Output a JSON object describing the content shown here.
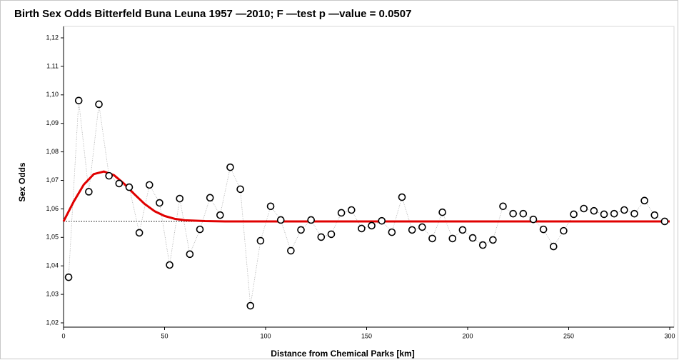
{
  "chart_data": {
    "type": "scatter",
    "title": "Birth Sex Odds Bitterfeld Buna Leuna 1957 —2010; F —test p —value =  0.0507",
    "x_label": "Distance from Chemical Parks [km]",
    "y_label": "Sex Odds",
    "xlim": [
      0,
      300
    ],
    "ylim": [
      1.02,
      1.12
    ],
    "xticks": [
      0,
      50,
      100,
      150,
      200,
      250,
      300
    ],
    "yticks": [
      {
        "value": 1.02,
        "label": "1,02"
      },
      {
        "value": 1.03,
        "label": "1,03"
      },
      {
        "value": 1.04,
        "label": "1,04"
      },
      {
        "value": 1.05,
        "label": "1,05"
      },
      {
        "value": 1.06,
        "label": "1,06"
      },
      {
        "value": 1.07,
        "label": "1,07"
      },
      {
        "value": 1.08,
        "label": "1,08"
      },
      {
        "value": 1.09,
        "label": "1,09"
      },
      {
        "value": 1.1,
        "label": "1,10"
      },
      {
        "value": 1.11,
        "label": "1,11"
      },
      {
        "value": 1.12,
        "label": "1,12"
      }
    ],
    "points": {
      "color": "#000000",
      "connector_color": "#aaaaaa",
      "x": [
        2.5,
        7.5,
        12.5,
        17.5,
        22.5,
        27.5,
        32.5,
        37.5,
        42.5,
        47.5,
        52.5,
        57.5,
        62.5,
        67.5,
        72.5,
        77.5,
        82.5,
        87.5,
        92.5,
        97.5,
        102.5,
        107.5,
        112.5,
        117.5,
        122.5,
        127.5,
        132.5,
        137.5,
        142.5,
        147.5,
        152.5,
        157.5,
        162.5,
        167.5,
        172.5,
        177.5,
        182.5,
        187.5,
        192.5,
        197.5,
        202.5,
        207.5,
        212.5,
        217.5,
        222.5,
        227.5,
        232.5,
        237.5,
        242.5,
        247.5,
        252.5,
        257.5,
        262.5,
        267.5,
        272.5,
        277.5,
        282.5,
        287.5,
        292.5,
        297.5
      ],
      "values": [
        1.036,
        1.098,
        1.066,
        1.0967,
        1.0716,
        1.0689,
        1.0676,
        1.0516,
        1.0684,
        1.0621,
        1.0403,
        1.0636,
        1.0441,
        1.0528,
        1.0639,
        1.0578,
        1.0746,
        1.0669,
        1.026,
        1.0488,
        1.0609,
        1.0561,
        1.0453,
        1.0526,
        1.0561,
        1.0501,
        1.0511,
        1.0586,
        1.0596,
        1.0531,
        1.0541,
        1.0558,
        1.0518,
        1.0641,
        1.0526,
        1.0536,
        1.0496,
        1.0588,
        1.0496,
        1.0526,
        1.0498,
        1.0473,
        1.0491,
        1.0609,
        1.0583,
        1.0583,
        1.0563,
        1.0528,
        1.0468,
        1.0523,
        1.0581,
        1.0601,
        1.0593,
        1.0581,
        1.0583,
        1.0596,
        1.0583,
        1.0629,
        1.0578,
        1.0556
      ]
    },
    "fit": {
      "color": "#e00000",
      "x": [
        0,
        5,
        10,
        15,
        20,
        25,
        30,
        35,
        40,
        45,
        50,
        55,
        60,
        70,
        80,
        300
      ],
      "values": [
        1.0556,
        1.0625,
        1.0685,
        1.0722,
        1.0731,
        1.0718,
        1.0688,
        1.0652,
        1.0618,
        1.0592,
        1.0575,
        1.0565,
        1.056,
        1.0557,
        1.0556,
        1.0556
      ]
    },
    "reference": {
      "color": "#000000",
      "x": [
        0,
        300
      ],
      "values": [
        1.0556,
        1.0556
      ]
    }
  }
}
